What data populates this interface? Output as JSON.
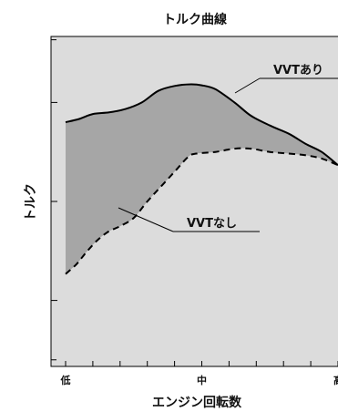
{
  "chart_data": {
    "type": "line",
    "title": "トルク曲線",
    "xlabel": "エンジン回転数",
    "ylabel": "トルク",
    "x_tick_labels": [
      {
        "x": 0,
        "label": "低"
      },
      {
        "x": 0.5,
        "label": "中"
      },
      {
        "x": 1,
        "label": "高"
      }
    ],
    "xlim": [
      0,
      1
    ],
    "ylim": [
      0,
      1
    ],
    "grid": false,
    "area_between_series": true,
    "series": [
      {
        "name": "VVTあり",
        "style": "solid",
        "x": [
          0,
          0.05,
          0.1,
          0.16,
          0.22,
          0.28,
          0.34,
          0.4,
          0.46,
          0.5,
          0.55,
          0.62,
          0.68,
          0.75,
          0.82,
          0.88,
          0.94,
          1.0
        ],
        "y": [
          0.74,
          0.75,
          0.765,
          0.77,
          0.78,
          0.8,
          0.835,
          0.85,
          0.855,
          0.852,
          0.84,
          0.8,
          0.76,
          0.73,
          0.705,
          0.675,
          0.65,
          0.61
        ]
      },
      {
        "name": "VVTなし",
        "style": "dashed",
        "x": [
          0,
          0.04,
          0.08,
          0.12,
          0.16,
          0.2,
          0.25,
          0.3,
          0.35,
          0.4,
          0.45,
          0.48,
          0.55,
          0.62,
          0.68,
          0.75,
          0.82,
          0.88,
          0.94,
          1.0
        ],
        "y": [
          0.28,
          0.31,
          0.35,
          0.385,
          0.41,
          0.425,
          0.45,
          0.5,
          0.545,
          0.59,
          0.635,
          0.645,
          0.65,
          0.66,
          0.66,
          0.65,
          0.645,
          0.64,
          0.63,
          0.61
        ]
      }
    ],
    "colors": {
      "plot_background": "#dcdcdc",
      "fill_between": "#a6a6a6",
      "line": "#000000"
    }
  }
}
